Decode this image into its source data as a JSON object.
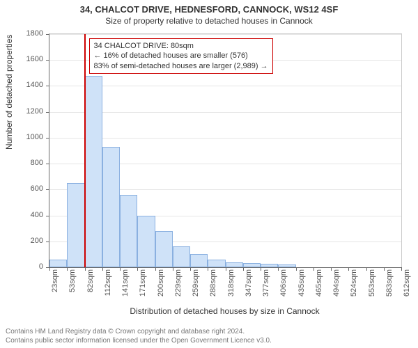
{
  "title": {
    "line1": "34, CHALCOT DRIVE, HEDNESFORD, CANNOCK, WS12 4SF",
    "line2": "Size of property relative to detached houses in Cannock",
    "fontsize_line1": 13,
    "fontsize_line2": 12
  },
  "chart": {
    "type": "histogram",
    "background_color": "#ffffff",
    "grid_color": "#e5e5e5",
    "axis_color": "#666666",
    "bar_fill": "#cfe2f8",
    "bar_border": "#8ab0e0",
    "marker_color": "#cc0000",
    "ylabel": "Number of detached properties",
    "xlabel": "Distribution of detached houses by size in Cannock",
    "label_fontsize": 12,
    "tick_fontsize": 11,
    "ylim": [
      0,
      1800
    ],
    "ytick_step": 200,
    "x_tick_labels": [
      "23sqm",
      "53sqm",
      "82sqm",
      "112sqm",
      "141sqm",
      "171sqm",
      "200sqm",
      "229sqm",
      "259sqm",
      "288sqm",
      "318sqm",
      "347sqm",
      "377sqm",
      "406sqm",
      "435sqm",
      "465sqm",
      "494sqm",
      "524sqm",
      "553sqm",
      "583sqm",
      "612sqm"
    ],
    "bars": [
      60,
      650,
      1480,
      930,
      560,
      400,
      280,
      160,
      100,
      60,
      40,
      30,
      25,
      20,
      0,
      0,
      0,
      0,
      0,
      0
    ],
    "marker_bin_index": 2,
    "marker_fraction_in_bin": 0.0
  },
  "annotation": {
    "line1": "34 CHALCOT DRIVE: 80sqm",
    "line2": "← 16% of detached houses are smaller (576)",
    "line3": "83% of semi-detached houses are larger (2,989) →",
    "border_color": "#cc0000",
    "fontsize": 11
  },
  "footer": {
    "line1": "Contains HM Land Registry data © Crown copyright and database right 2024.",
    "line2": "Contains public sector information licensed under the Open Government Licence v3.0.",
    "color": "#777777",
    "fontsize": 10
  }
}
